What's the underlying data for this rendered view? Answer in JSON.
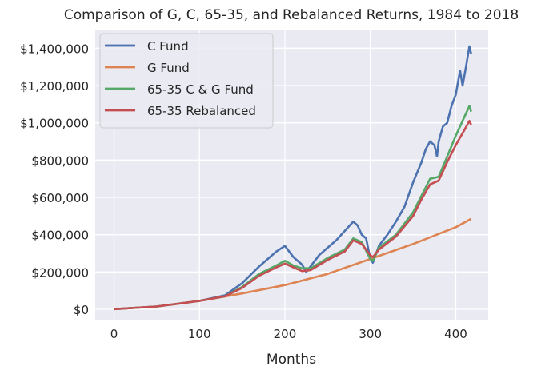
{
  "chart_data": {
    "type": "line",
    "title": "Comparison of G, C, 65-35, and Rebalanced Returns, 1984 to 2018",
    "xlabel": "Months",
    "ylabel": "",
    "xlim": [
      -22,
      438
    ],
    "ylim": [
      -60000,
      1500000
    ],
    "xticks": [
      0,
      100,
      200,
      300,
      400
    ],
    "yticks": [
      0,
      200000,
      400000,
      600000,
      800000,
      1000000,
      1200000,
      1400000
    ],
    "ytick_labels": [
      "$0",
      "$200,000",
      "$400,000",
      "$600,000",
      "$800,000",
      "$1,000,000",
      "$1,200,000",
      "$1,400,000"
    ],
    "grid": true,
    "legend": "top-left",
    "background": "#eaeaf2",
    "series": [
      {
        "name": "C Fund",
        "color": "#4c72b0",
        "x": [
          0,
          50,
          100,
          130,
          150,
          170,
          180,
          190,
          200,
          210,
          220,
          225,
          230,
          240,
          250,
          260,
          270,
          280,
          285,
          290,
          295,
          300,
          303,
          310,
          320,
          330,
          340,
          350,
          360,
          365,
          370,
          375,
          378,
          380,
          385,
          390,
          395,
          400,
          405,
          408,
          412,
          416,
          418
        ],
        "y": [
          1000,
          15000,
          45000,
          75000,
          140000,
          230000,
          270000,
          310000,
          340000,
          280000,
          240000,
          200000,
          230000,
          290000,
          330000,
          370000,
          420000,
          470000,
          450000,
          400000,
          380000,
          270000,
          250000,
          340000,
          400000,
          470000,
          550000,
          680000,
          790000,
          860000,
          900000,
          880000,
          820000,
          900000,
          980000,
          1000000,
          1090000,
          1150000,
          1280000,
          1200000,
          1300000,
          1410000,
          1370000
        ]
      },
      {
        "name": "G Fund",
        "color": "#dd8452",
        "x": [
          0,
          50,
          100,
          150,
          200,
          250,
          300,
          350,
          400,
          418
        ],
        "y": [
          1000,
          15000,
          45000,
          85000,
          130000,
          190000,
          270000,
          350000,
          440000,
          485000
        ]
      },
      {
        "name": "65-35 C & G Fund",
        "color": "#55a868",
        "x": [
          0,
          50,
          100,
          130,
          150,
          170,
          190,
          200,
          210,
          220,
          230,
          250,
          270,
          280,
          290,
          300,
          303,
          310,
          330,
          350,
          360,
          370,
          380,
          390,
          400,
          410,
          416,
          418
        ],
        "y": [
          1000,
          15000,
          45000,
          70000,
          120000,
          190000,
          235000,
          260000,
          235000,
          220000,
          220000,
          275000,
          320000,
          380000,
          360000,
          270000,
          260000,
          330000,
          400000,
          520000,
          610000,
          700000,
          710000,
          820000,
          930000,
          1030000,
          1090000,
          1060000
        ]
      },
      {
        "name": "65-35 Rebalanced",
        "color": "#c44e52",
        "x": [
          0,
          50,
          100,
          130,
          150,
          170,
          190,
          200,
          210,
          220,
          230,
          250,
          270,
          280,
          290,
          300,
          303,
          310,
          330,
          350,
          360,
          370,
          380,
          390,
          400,
          410,
          416,
          418
        ],
        "y": [
          1000,
          15000,
          45000,
          70000,
          115000,
          180000,
          225000,
          245000,
          225000,
          205000,
          210000,
          265000,
          310000,
          370000,
          350000,
          290000,
          280000,
          320000,
          390000,
          500000,
          590000,
          670000,
          690000,
          790000,
          880000,
          960000,
          1010000,
          990000
        ]
      }
    ]
  }
}
